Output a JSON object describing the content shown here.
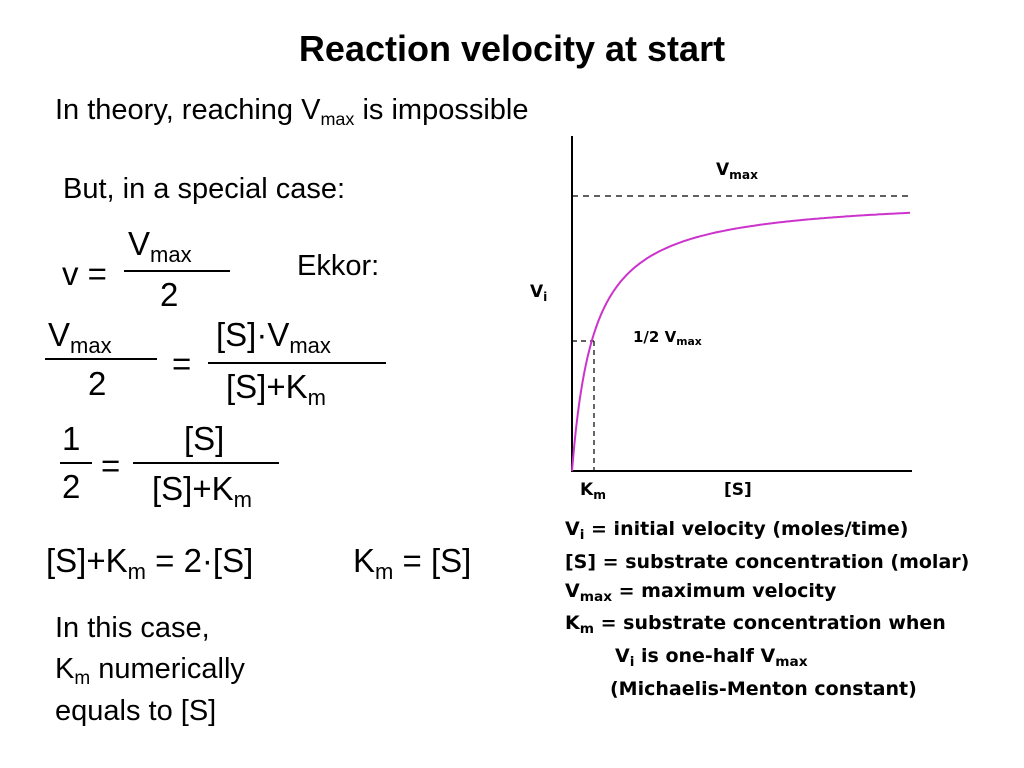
{
  "title": "Reaction velocity at start",
  "intro": {
    "before": "In theory, reaching V",
    "sub": "max",
    "after": " is impossible"
  },
  "special_case": "But, in a special case:",
  "eq1": {
    "lhs": "v =",
    "num": "V",
    "num_sub": "max",
    "den": "2"
  },
  "ekkor": "Ekkor:",
  "eq2": {
    "lhs_num": "V",
    "lhs_num_sub": "max",
    "lhs_den": "2",
    "equals": "=",
    "rhs_num": "[S]·V",
    "rhs_num_sub": "max",
    "rhs_den": "[S]+K",
    "rhs_den_sub": "m"
  },
  "eq3": {
    "lhs_num": "1",
    "lhs_den": "2",
    "equals": "=",
    "rhs_num": "[S]",
    "rhs_den": "[S]+K",
    "rhs_den_sub": "m"
  },
  "eq4": {
    "left": "[S]+K",
    "left_sub": "m",
    "right": " = 2·[S]"
  },
  "eq5": {
    "left": "K",
    "sub": "m",
    "right": " = [S]"
  },
  "conclusion": {
    "line1": "In this case,",
    "line2_pre": "K",
    "line2_sub": "m",
    "line2_post": " numerically",
    "line3": "equals to [S]"
  },
  "graph": {
    "vmax_label": "V",
    "vmax_sub": "max",
    "half_label": "1/2 V",
    "half_sub": "max",
    "yaxis_label": "V",
    "yaxis_sub": "i",
    "km_label": "K",
    "km_sub": "m",
    "xaxis_label": "[S]",
    "curve_color": "#cc33cc"
  },
  "legend": [
    {
      "term": "V",
      "term_sub": "i",
      "text": " = initial velocity (moles/time)"
    },
    {
      "term": "[S]",
      "term_sub": "",
      "text": " = substrate concentration (molar)"
    },
    {
      "term": "V",
      "term_sub": "max",
      "text": " = maximum velocity"
    },
    {
      "term": "K",
      "term_sub": "m",
      "text": " = substrate concentration when"
    },
    {
      "term": "V",
      "term_sub": "i",
      "text": " is one-half V",
      "tail_sub": "max"
    },
    {
      "term": "",
      "term_sub": "",
      "text": "(Michaelis-Menton constant)"
    }
  ]
}
